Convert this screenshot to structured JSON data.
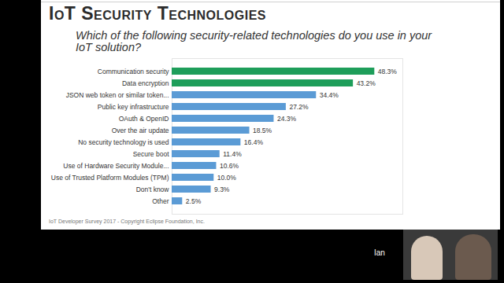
{
  "chart_data": {
    "type": "bar",
    "title": "IoT Security Technologies",
    "subtitle": "Which of the following security-related technologies do you use in your IoT solution?",
    "caption": "IoT Developer Survey 2017 - Copyright Eclipse Foundation, Inc.",
    "annotations": [
      "Ian"
    ],
    "orientation": "horizontal",
    "categories": [
      "Communication security",
      "Data encryption",
      "JSON web token or similar token...",
      "Public key infrastructure",
      "OAuth & OpenID",
      "Over the air update",
      "No security technology is used",
      "Secure boot",
      "Use of Hardware Security Module...",
      "Use of Trusted Platform Modules (TPM)",
      "Don't know",
      "Other"
    ],
    "values": [
      48.3,
      43.2,
      34.4,
      27.2,
      24.3,
      18.5,
      16.4,
      11.4,
      10.6,
      10.0,
      9.3,
      2.5
    ],
    "value_labels": [
      "48.3%",
      "43.2%",
      "34.4%",
      "27.2%",
      "24.3%",
      "18.5%",
      "16.4%",
      "11.4%",
      "10.6%",
      "10.0%",
      "9.3%",
      "2.5%"
    ],
    "colors": [
      "#1e9e5a",
      "#1e9e5a",
      "#5b9bd5",
      "#5b9bd5",
      "#5b9bd5",
      "#5b9bd5",
      "#5b9bd5",
      "#5b9bd5",
      "#5b9bd5",
      "#5b9bd5",
      "#5b9bd5",
      "#5b9bd5"
    ],
    "xlim": [
      0,
      55
    ],
    "data_labels": true,
    "tick_labels": "y",
    "grid": false
  }
}
